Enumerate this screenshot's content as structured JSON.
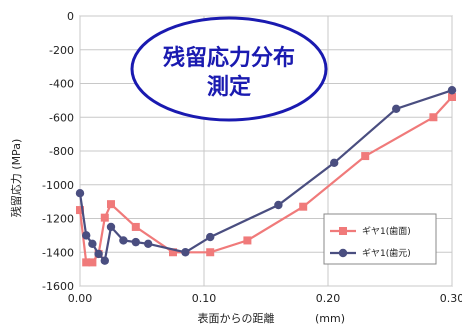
{
  "chart_data": {
    "type": "line",
    "xlabel": "表面からの距離",
    "xunit": "(mm)",
    "ylabel": "残留応力 (MPa)",
    "xlim": [
      0,
      0.3
    ],
    "ylim": [
      -1600,
      0
    ],
    "xticks": [
      0,
      0.1,
      0.2,
      0.3
    ],
    "xtick_labels": [
      "0.00",
      "0.10",
      "0.20",
      "0.30"
    ],
    "yticks": [
      0,
      -200,
      -400,
      -600,
      -800,
      -1000,
      -1200,
      -1400,
      -1600
    ],
    "ytick_labels": [
      "0",
      "-200",
      "-400",
      "-600",
      "-800",
      "-1000",
      "-1200",
      "-1400",
      "-1600"
    ],
    "grid": true,
    "legend_position": "bottom-right",
    "badge": {
      "line1": "残留応力分布",
      "line2": "測定"
    },
    "series": [
      {
        "name": "ギヤ1(歯面)",
        "marker": "square",
        "color": "#f07a7a",
        "x": [
          0.0,
          0.005,
          0.01,
          0.015,
          0.02,
          0.025,
          0.045,
          0.075,
          0.105,
          0.135,
          0.18,
          0.23,
          0.285,
          0.3
        ],
        "y": [
          -1150,
          -1460,
          -1460,
          -1410,
          -1195,
          -1115,
          -1250,
          -1400,
          -1400,
          -1330,
          -1130,
          -830,
          -600,
          -480
        ]
      },
      {
        "name": "ギヤ1(歯元)",
        "marker": "circle",
        "color": "#4a4e80",
        "x": [
          0.0,
          0.005,
          0.01,
          0.015,
          0.02,
          0.025,
          0.035,
          0.045,
          0.055,
          0.085,
          0.105,
          0.16,
          0.205,
          0.255,
          0.3
        ],
        "y": [
          -1050,
          -1300,
          -1350,
          -1410,
          -1450,
          -1250,
          -1330,
          -1340,
          -1350,
          -1400,
          -1310,
          -1120,
          -870,
          -550,
          -440
        ]
      }
    ]
  }
}
